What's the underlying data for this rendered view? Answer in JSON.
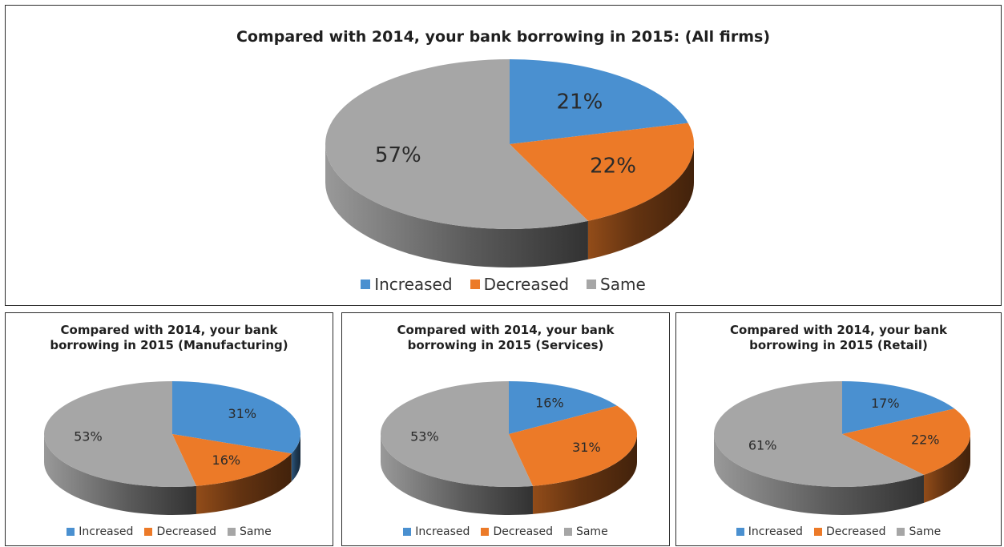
{
  "colors": {
    "increased": "#4a90d0",
    "decreased": "#ec7a28",
    "same": "#a6a6a6"
  },
  "chart_data": [
    {
      "type": "pie",
      "title": "Compared with 2014, your bank borrowing in 2015: (All firms)",
      "categories": [
        "Increased",
        "Decreased",
        "Same"
      ],
      "values": [
        21,
        22,
        57
      ],
      "labels": [
        "21%",
        "22%",
        "57%"
      ],
      "legend": "bottom"
    },
    {
      "type": "pie",
      "title": "Compared with 2014, your bank borrowing in 2015 (Manufacturing)",
      "categories": [
        "Increased",
        "Decreased",
        "Same"
      ],
      "values": [
        31,
        16,
        53
      ],
      "labels": [
        "31%",
        "16%",
        "53%"
      ],
      "legend": "bottom"
    },
    {
      "type": "pie",
      "title": "Compared with 2014, your bank borrowing in 2015 (Services)",
      "categories": [
        "Increased",
        "Decreased",
        "Same"
      ],
      "values": [
        16,
        31,
        53
      ],
      "labels": [
        "16%",
        "31%",
        "53%"
      ],
      "legend": "bottom"
    },
    {
      "type": "pie",
      "title": "Compared with 2014, your bank borrowing in 2015 (Retail)",
      "categories": [
        "Increased",
        "Decreased",
        "Same"
      ],
      "values": [
        17,
        22,
        61
      ],
      "labels": [
        "17%",
        "22%",
        "61%"
      ],
      "legend": "bottom"
    }
  ]
}
